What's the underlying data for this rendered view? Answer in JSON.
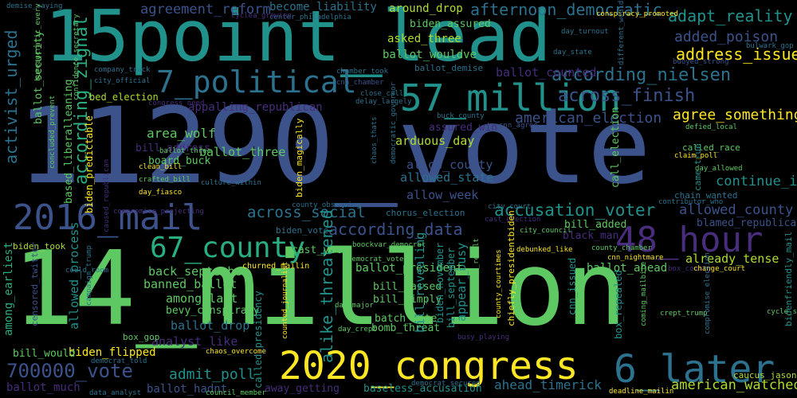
{
  "palette": {
    "background": "#000000",
    "dark_purple": "#440154",
    "purple": "#472d7b",
    "indigo": "#3b528b",
    "blue": "#2c728e",
    "teal": "#21918c",
    "green_teal": "#28ae80",
    "green": "#5ec962",
    "lime": "#addc30",
    "yellow": "#fde725"
  },
  "words": [
    {
      "text": "11290_vote",
      "color": "#3b528b"
    },
    {
      "text": "14_million",
      "color": "#5ec962"
    },
    {
      "text": "15point_lead",
      "color": "#21918c"
    },
    {
      "text": "2016_mail",
      "color": "#3b528b"
    },
    {
      "text": "57_million",
      "color": "#21918c"
    },
    {
      "text": "7_political",
      "color": "#2c728e"
    },
    {
      "text": "67_county",
      "color": "#28ae80"
    },
    {
      "text": "48_hour",
      "color": "#472d7b"
    },
    {
      "text": "2020_congress",
      "color": "#fde725"
    },
    {
      "text": "6_later",
      "color": "#2c728e"
    },
    {
      "text": "700000_vote",
      "color": "#3b528b"
    },
    {
      "text": "afternoon_democratic",
      "color": "#2c728e"
    },
    {
      "text": "agreement_reform",
      "color": "#3b528b"
    },
    {
      "text": "become_liability",
      "color": "#2c728e"
    },
    {
      "text": "around_drop",
      "color": "#addc30"
    },
    {
      "text": "adapt_reality",
      "color": "#21918c"
    },
    {
      "text": "added_poison",
      "color": "#3b528b"
    },
    {
      "text": "address_issue",
      "color": "#fde725"
    },
    {
      "text": "according_nielsen",
      "color": "#2c728e"
    },
    {
      "text": "across_finish",
      "color": "#3b528b"
    },
    {
      "text": "asked_three",
      "color": "#addc30"
    },
    {
      "text": "ballot_wouldve",
      "color": "#5ec962"
    },
    {
      "text": "biden_assured",
      "color": "#5ec962"
    },
    {
      "text": "ballot_counted",
      "color": "#472d7b"
    },
    {
      "text": "according_zignal",
      "color": "#28ae80"
    },
    {
      "text": "activist_urged",
      "color": "#2c728e"
    },
    {
      "text": "american_election",
      "color": "#3b528b"
    },
    {
      "text": "agree_something",
      "color": "#fde725"
    },
    {
      "text": "call_election",
      "color": "#5ec962"
    },
    {
      "text": "area_wolf",
      "color": "#5ec962"
    },
    {
      "text": "arduous_day",
      "color": "#addc30"
    },
    {
      "text": "ballot_three",
      "color": "#5ec962"
    },
    {
      "text": "allow_county",
      "color": "#3b528b"
    },
    {
      "text": "allowed_state",
      "color": "#2c728e"
    },
    {
      "text": "allow_week",
      "color": "#3b528b"
    },
    {
      "text": "continue_issue",
      "color": "#21918c"
    },
    {
      "text": "across_social",
      "color": "#2c728e"
    },
    {
      "text": "according_data",
      "color": "#3b528b"
    },
    {
      "text": "accusation_voter",
      "color": "#21918c"
    },
    {
      "text": "allowed_county",
      "color": "#3b528b"
    },
    {
      "text": "blamed_republican",
      "color": "#3b528b"
    },
    {
      "text": "already_tense",
      "color": "#addc30"
    },
    {
      "text": "back_september",
      "color": "#5ec962"
    },
    {
      "text": "banned_ballot",
      "color": "#5ec962"
    },
    {
      "text": "among_last",
      "color": "#5ec962"
    },
    {
      "text": "bevy_conspiracy",
      "color": "#5ec962"
    },
    {
      "text": "ballot_drop",
      "color": "#2c728e"
    },
    {
      "text": "analyst_like",
      "color": "#472d7b"
    },
    {
      "text": "admit_poll",
      "color": "#21918c"
    },
    {
      "text": "ballot_hadnt",
      "color": "#3b528b"
    },
    {
      "text": "away_getting",
      "color": "#472d7b"
    },
    {
      "text": "baseless_accusation",
      "color": "#21918c"
    },
    {
      "text": "ahead_timerick",
      "color": "#2c728e"
    },
    {
      "text": "american_watched",
      "color": "#addc30"
    },
    {
      "text": "ballot_much",
      "color": "#472d7b"
    },
    {
      "text": "biden_flipped",
      "color": "#fde725"
    },
    {
      "text": "bill_would",
      "color": "#5ec962"
    },
    {
      "text": "among_earliest",
      "color": "#28ae80"
    },
    {
      "text": "allowed_process",
      "color": "#21918c"
    },
    {
      "text": "alike_threatened",
      "color": "#21918c"
    },
    {
      "text": "appear_busy",
      "color": "#21918c"
    },
    {
      "text": "ballot_president",
      "color": "#5ec962"
    },
    {
      "text": "bill_passed",
      "color": "#5ec962"
    },
    {
      "text": "bill_simply",
      "color": "#5ec962"
    },
    {
      "text": "batch_vote",
      "color": "#5ec962"
    },
    {
      "text": "bomb_threat",
      "color": "#5ec962"
    },
    {
      "text": "ballot_ahead",
      "color": "#5ec962"
    },
    {
      "text": "bill_added",
      "color": "#5ec962"
    },
    {
      "text": "black_man",
      "color": "#472d7b"
    },
    {
      "text": "cast_yet",
      "color": "#5ec962"
    },
    {
      "text": "biden_took",
      "color": "#addc30"
    },
    {
      "text": "box_gop",
      "color": "#5ec962"
    },
    {
      "text": "bill_address",
      "color": "#472d7b"
    },
    {
      "text": "board_buck",
      "color": "#5ec962"
    },
    {
      "text": "assured_win",
      "color": "#472d7b"
    },
    {
      "text": "based_liberalleaning",
      "color": "#5ec962"
    },
    {
      "text": "ballot_security",
      "color": "#5ec962"
    },
    {
      "text": "bed_election",
      "color": "#addc30"
    },
    {
      "text": "appalling_republican",
      "color": "#472d7b"
    },
    {
      "text": "biden_vote",
      "color": "#2c728e"
    },
    {
      "text": "ballot_demise",
      "color": "#2c728e"
    },
    {
      "text": "called_race",
      "color": "#5ec962"
    },
    {
      "text": "came_true",
      "color": "#21918c"
    },
    {
      "text": "chain_wanted",
      "color": "#2c728e"
    },
    {
      "text": "caucus_jason",
      "color": "#addc30"
    },
    {
      "text": "bidenfriendly_mail",
      "color": "#21918c"
    },
    {
      "text": "biden_magically",
      "color": "#fde725"
    },
    {
      "text": "chorus_election",
      "color": "#2c728e"
    },
    {
      "text": "bill_revealing",
      "color": "#21918c"
    },
    {
      "text": "biden_november",
      "color": "#21918c"
    },
    {
      "text": "bill_september",
      "color": "#21918c"
    },
    {
      "text": "box_repealed",
      "color": "#21918c"
    },
    {
      "text": "cnn_issued",
      "color": "#21918c"
    },
    {
      "text": "churned_mailin",
      "color": "#fde725"
    },
    {
      "text": "cnn_nightmare",
      "color": "#fde725"
    },
    {
      "text": "chaos_overcome",
      "color": "#fde725"
    },
    {
      "text": "bulwark_gop",
      "color": "#2c728e"
    },
    {
      "text": "buoyed_strong",
      "color": "#3b528b"
    },
    {
      "text": "deadline_mailin",
      "color": "#fde725"
    },
    {
      "text": "claim_poll",
      "color": "#fde725"
    },
    {
      "text": "crafted_bill",
      "color": "#5ec962"
    },
    {
      "text": "clean_bill",
      "color": "#fde725"
    },
    {
      "text": "called_presidency",
      "color": "#21918c"
    },
    {
      "text": "conspiracy_promoted",
      "color": "#fde725"
    },
    {
      "text": "center_philadelphia",
      "color": "#2c728e"
    },
    {
      "text": "ballot_three",
      "color": "#5ec962"
    },
    {
      "text": "company_track",
      "color": "#2c728e"
    },
    {
      "text": "city_official",
      "color": "#2c728e"
    },
    {
      "text": "congress_need",
      "color": "#472d7b"
    },
    {
      "text": "chamber_took",
      "color": "#2c728e"
    },
    {
      "text": "cnn_chamber",
      "color": "#3b528b"
    },
    {
      "text": "close_call",
      "color": "#2c728e"
    },
    {
      "text": "delay_largely",
      "color": "#2c728e"
    },
    {
      "text": "day_state",
      "color": "#2c728e"
    },
    {
      "text": "day_turnout",
      "color": "#2c728e"
    },
    {
      "text": "box_county",
      "color": "#472d7b"
    },
    {
      "text": "change_court",
      "color": "#fde725"
    },
    {
      "text": "city_court",
      "color": "#2c728e"
    },
    {
      "text": "cast_election",
      "color": "#472d7b"
    },
    {
      "text": "city_council",
      "color": "#5ec962"
    },
    {
      "text": "buck_county",
      "color": "#2c728e"
    },
    {
      "text": "cnn_agree",
      "color": "#3b528b"
    },
    {
      "text": "biden_predictable",
      "color": "#fde725"
    },
    {
      "text": "concluded_prevent",
      "color": "#5ec962"
    },
    {
      "text": "confidence_secretary",
      "color": "#5ec962"
    },
    {
      "text": "boockvar_democrat",
      "color": "#5ec962"
    },
    {
      "text": "censored_twitter",
      "color": "#3b528b"
    },
    {
      "text": "cycle_said",
      "color": "#5ec962"
    },
    {
      "text": "crept_trump",
      "color": "#5ec962"
    },
    {
      "text": "council_member",
      "color": "#5ec962"
    },
    {
      "text": "data_analyst",
      "color": "#2c728e"
    },
    {
      "text": "democrat_told",
      "color": "#2c728e"
    },
    {
      "text": "debunked_like",
      "color": "#fde725"
    },
    {
      "text": "county_chamber",
      "color": "#5ec962"
    },
    {
      "text": "counted_journalist",
      "color": "#fde725"
    },
    {
      "text": "busy_playing",
      "color": "#472d7b"
    },
    {
      "text": "day_major",
      "color": "#5ec962"
    },
    {
      "text": "delivered_result",
      "color": "#5ec962"
    },
    {
      "text": "day_crept",
      "color": "#5ec962"
    },
    {
      "text": "campaign_trump",
      "color": "#2c728e"
    },
    {
      "text": "caused_republican",
      "color": "#472d7b"
    },
    {
      "text": "compromise_projecting",
      "color": "#472d7b"
    },
    {
      "text": "could_room",
      "color": "#2c728e"
    },
    {
      "text": "demise_saying",
      "color": "#2c728e"
    },
    {
      "text": "cyclea_growing",
      "color": "#472d7b"
    },
    {
      "text": "bureaucratic_every",
      "color": "#5ec962"
    },
    {
      "text": "different_would",
      "color": "#2c728e"
    },
    {
      "text": "day_allowed",
      "color": "#5ec962"
    },
    {
      "text": "defied_local",
      "color": "#5ec962"
    },
    {
      "text": "democrat_vote",
      "color": "#5ec962"
    },
    {
      "text": "county_observing",
      "color": "#2c728e"
    },
    {
      "text": "coming_mailbite",
      "color": "#5ec962"
    },
    {
      "text": "chiefly_presidentbiden",
      "color": "#fde725"
    },
    {
      "text": "county_courtimes",
      "color": "#fde725"
    },
    {
      "text": "compromise_election",
      "color": "#2c728e"
    },
    {
      "text": "democrat_secured",
      "color": "#2c728e"
    },
    {
      "text": "democratic_governor",
      "color": "#2c728e"
    },
    {
      "text": "chaos_thats",
      "color": "#2c728e"
    },
    {
      "text": "day_fiasco",
      "color": "#fde725"
    },
    {
      "text": "culture_within",
      "color": "#2c728e"
    },
    {
      "text": "contributor_who",
      "color": "#2c728e"
    }
  ]
}
